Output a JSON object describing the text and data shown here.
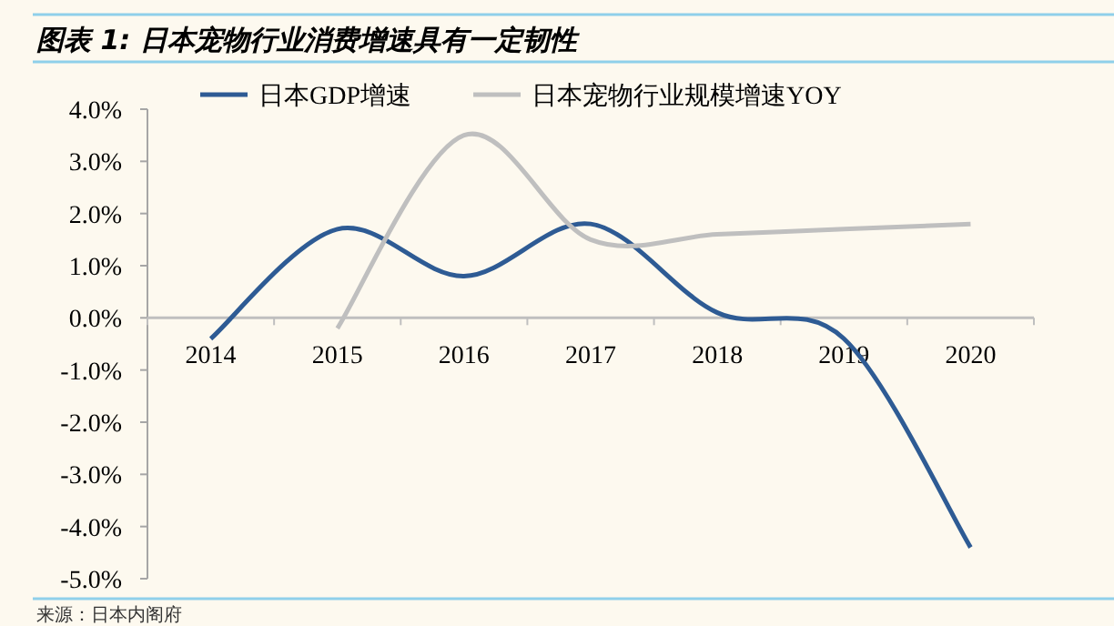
{
  "chart_data": {
    "type": "line",
    "title": "图表 1:  日本宠物行业消费增速具有一定韧性",
    "categories": [
      "2014",
      "2015",
      "2016",
      "2017",
      "2018",
      "2019",
      "2020"
    ],
    "series": [
      {
        "name": "日本GDP增速",
        "color": "#2e5b94",
        "values": [
          -0.4,
          1.7,
          0.8,
          1.8,
          0.1,
          -0.4,
          -4.4
        ]
      },
      {
        "name": "日本宠物行业规模增速YOY",
        "color": "#bfbfbf",
        "values": [
          null,
          -0.2,
          3.5,
          1.5,
          1.6,
          1.7,
          1.8
        ]
      }
    ],
    "ylim": [
      -5,
      4
    ],
    "yticks": [
      {
        "value": 4,
        "label": "4.0%"
      },
      {
        "value": 3,
        "label": "3.0%"
      },
      {
        "value": 2,
        "label": "2.0%"
      },
      {
        "value": 1,
        "label": "1.0%"
      },
      {
        "value": 0,
        "label": "0.0%"
      },
      {
        "value": -1,
        "label": "-1.0%"
      },
      {
        "value": -2,
        "label": "-2.0%"
      },
      {
        "value": -3,
        "label": "-3.0%"
      },
      {
        "value": -4,
        "label": "-4.0%"
      },
      {
        "value": -5,
        "label": "-5.0%"
      }
    ],
    "legend": "top",
    "annotations": [
      "来源：日本内阁府"
    ]
  }
}
